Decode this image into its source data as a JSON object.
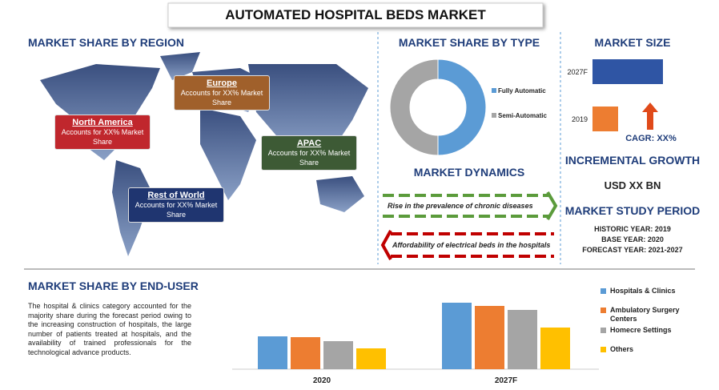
{
  "title": "AUTOMATED HOSPITAL BEDS MARKET",
  "region": {
    "heading": "MARKET SHARE BY REGION",
    "callouts": [
      {
        "name": "Europe",
        "text": "Accounts for XX% Market Share"
      },
      {
        "name": "North America",
        "text": "Accounts for XX% Market Share"
      },
      {
        "name": "APAC",
        "text": "Accounts for XX% Market Share"
      },
      {
        "name": "Rest of World",
        "text": "Accounts for XX% Market Share"
      }
    ]
  },
  "chart_data": [
    {
      "type": "donut",
      "title": "MARKET SHARE BY TYPE",
      "categories": [
        "Fully Automatic",
        "Semi-Automatic"
      ],
      "values": [
        50,
        50
      ],
      "colors": [
        "#5b9bd5",
        "#a5a5a5"
      ]
    },
    {
      "type": "hbar",
      "title": "MARKET  SIZE",
      "categories": [
        "2027F",
        "2019"
      ],
      "values": [
        88,
        32
      ],
      "colors": [
        "#2f55a4",
        "#ed7d31"
      ],
      "annotation": "CAGR: XX%"
    },
    {
      "type": "grouped-bar",
      "title": "MARKET SHARE BY END-USER",
      "categories": [
        "2020",
        "2027F"
      ],
      "series": [
        {
          "name": "Hospitals & Clinics",
          "color": "#5b9bd5",
          "values": [
            41,
            83
          ]
        },
        {
          "name": "Ambulatory Surgery Centers",
          "color": "#ed7d31",
          "values": [
            40,
            79
          ]
        },
        {
          "name": "Homecre Settings",
          "color": "#a5a5a5",
          "values": [
            35,
            74
          ]
        },
        {
          "name": "Others",
          "color": "#ffc000",
          "values": [
            26,
            52
          ]
        }
      ]
    }
  ],
  "dynamics": {
    "heading": "MARKET DYNAMICS",
    "drivers": [
      "Rise in the prevalence of chronic diseases",
      "Affordability of electrical beds in the hospitals"
    ]
  },
  "growth": {
    "heading": "INCREMENTAL GROWTH",
    "value": "USD XX BN"
  },
  "study_period": {
    "heading": "MARKET STUDY PERIOD",
    "lines": [
      "HISTORIC YEAR: 2019",
      "BASE YEAR: 2020",
      "FORECAST YEAR: 2021-2027"
    ]
  },
  "end_user_text": "The hospital & clinics category accounted for the majority share during the forecast period owing to the increasing construction of hospitals, the large number of patients treated at hospitals, and the availability of trained professionals for the technological advance products."
}
